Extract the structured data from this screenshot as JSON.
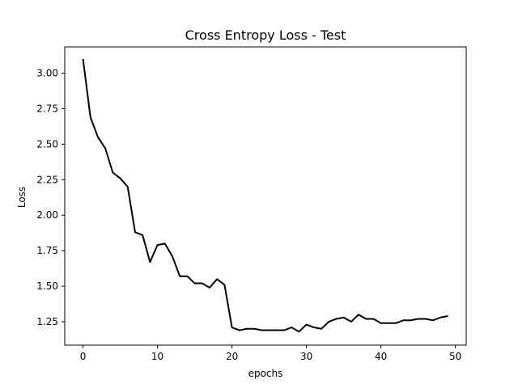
{
  "chart_data": {
    "type": "line",
    "title": "Cross Entropy Loss - Test",
    "xlabel": "epochs",
    "ylabel": "Loss",
    "xlim": [
      -2.45,
      51.45
    ],
    "ylim": [
      1.085,
      3.185
    ],
    "xticks": [
      0,
      10,
      20,
      30,
      40,
      50
    ],
    "yticks": [
      1.25,
      1.5,
      1.75,
      2.0,
      2.25,
      2.5,
      2.75,
      3.0
    ],
    "xtick_labels": [
      "0",
      "10",
      "20",
      "30",
      "40",
      "50"
    ],
    "ytick_labels": [
      "1.25",
      "1.50",
      "1.75",
      "2.00",
      "2.25",
      "2.50",
      "2.75",
      "3.00"
    ],
    "grid": false,
    "line_color": "#000000",
    "series": [
      {
        "x": [
          0,
          1,
          2,
          3,
          4,
          5,
          6,
          7,
          8,
          9,
          10,
          11,
          12,
          13,
          14,
          15,
          16,
          17,
          18,
          19,
          20,
          21,
          22,
          23,
          24,
          25,
          26,
          27,
          28,
          29,
          30,
          31,
          32,
          33,
          34,
          35,
          36,
          37,
          38,
          39,
          40,
          41,
          42,
          43,
          44,
          45,
          46,
          47,
          48,
          49
        ],
        "values": [
          3.1,
          2.69,
          2.55,
          2.47,
          2.3,
          2.26,
          2.2,
          1.88,
          1.86,
          1.67,
          1.79,
          1.8,
          1.71,
          1.57,
          1.57,
          1.52,
          1.52,
          1.49,
          1.55,
          1.51,
          1.21,
          1.19,
          1.2,
          1.2,
          1.19,
          1.19,
          1.19,
          1.19,
          1.21,
          1.18,
          1.23,
          1.21,
          1.2,
          1.25,
          1.27,
          1.28,
          1.25,
          1.3,
          1.27,
          1.27,
          1.24,
          1.24,
          1.24,
          1.26,
          1.26,
          1.27,
          1.27,
          1.26,
          1.28,
          1.29
        ]
      }
    ]
  }
}
